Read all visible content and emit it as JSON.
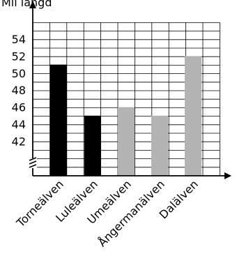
{
  "chart_data": {
    "type": "bar",
    "ylabel": "Mil längd",
    "categories": [
      "Torneälven",
      "Luleälven",
      "Umeälven",
      "Ångermanälven",
      "Dalälven"
    ],
    "values": [
      51,
      45,
      46,
      45,
      52
    ],
    "bar_colors": [
      "#000000",
      "#000000",
      "#b3b3b3",
      "#b3b3b3",
      "#b3b3b3"
    ],
    "yticks": [
      42,
      44,
      46,
      48,
      50,
      52,
      54
    ],
    "ylim": [
      38,
      56
    ],
    "y_axis_break": true,
    "grid": true
  }
}
